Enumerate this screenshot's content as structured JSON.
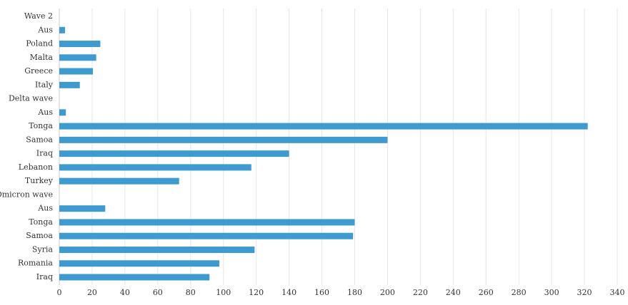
{
  "chart_data": {
    "type": "hbar",
    "categories": [
      "Wave 2",
      "Aus",
      "Poland",
      "Malta",
      "Greece",
      "Italy",
      "Delta wave",
      "Aus",
      "Tonga",
      "Samoa",
      "Iraq",
      "Lebanon",
      "Turkey",
      "Omicron wave",
      "Aus",
      "Tonga",
      "Samoa",
      "Syria",
      "Romania",
      "Iraq"
    ],
    "values": [
      null,
      3.5,
      25,
      22.5,
      20.5,
      12.5,
      null,
      4,
      322,
      200,
      140,
      117,
      73,
      null,
      28,
      180,
      179,
      119,
      97.5,
      91.5
    ],
    "color": "#3d9bd0",
    "xlim": [
      0,
      340
    ],
    "xticks": [
      0,
      20,
      40,
      60,
      80,
      100,
      120,
      140,
      160,
      180,
      200,
      220,
      240,
      260,
      280,
      300,
      320,
      340
    ],
    "grid": true
  }
}
